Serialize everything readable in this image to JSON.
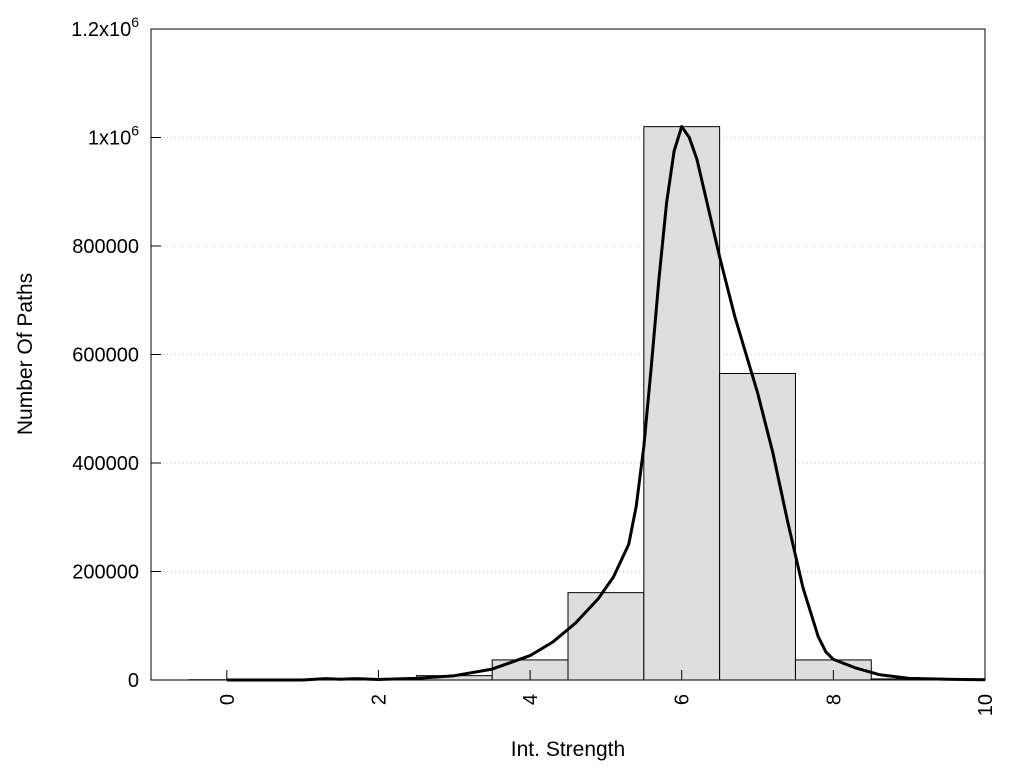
{
  "chart_data": {
    "type": "bar",
    "xlabel": "Int. Strength",
    "ylabel": "Number Of Paths",
    "xlim": [
      -1,
      10
    ],
    "ylim": [
      0,
      1200000
    ],
    "x_ticks": [
      {
        "value": 0,
        "label": "0"
      },
      {
        "value": 2,
        "label": "2"
      },
      {
        "value": 4,
        "label": "4"
      },
      {
        "value": 6,
        "label": "6"
      },
      {
        "value": 8,
        "label": "8"
      },
      {
        "value": 10,
        "label": "10"
      }
    ],
    "y_ticks": [
      {
        "value": 0,
        "label": "0",
        "sup": ""
      },
      {
        "value": 200000,
        "label": "200000",
        "sup": ""
      },
      {
        "value": 400000,
        "label": "400000",
        "sup": ""
      },
      {
        "value": 600000,
        "label": "600000",
        "sup": ""
      },
      {
        "value": 800000,
        "label": "800000",
        "sup": ""
      },
      {
        "value": 1000000,
        "label": "1x10",
        "sup": "6"
      },
      {
        "value": 1200000,
        "label": "1.2x10",
        "sup": "6"
      }
    ],
    "bar_width": 1,
    "bars": [
      {
        "x": 0,
        "value": 500
      },
      {
        "x": 1,
        "value": 1000
      },
      {
        "x": 2,
        "value": 2000
      },
      {
        "x": 3,
        "value": 8000
      },
      {
        "x": 4,
        "value": 37000
      },
      {
        "x": 5,
        "value": 161000
      },
      {
        "x": 6,
        "value": 1020000
      },
      {
        "x": 7,
        "value": 565000
      },
      {
        "x": 8,
        "value": 37000
      },
      {
        "x": 9,
        "value": 2000
      }
    ],
    "curve": [
      [
        0,
        0
      ],
      [
        0.5,
        0
      ],
      [
        1,
        0
      ],
      [
        1.3,
        2500
      ],
      [
        1.5,
        1500
      ],
      [
        1.7,
        2500
      ],
      [
        2,
        1000
      ],
      [
        2.5,
        3000
      ],
      [
        3,
        8000
      ],
      [
        3.5,
        20000
      ],
      [
        4,
        45000
      ],
      [
        4.3,
        70000
      ],
      [
        4.6,
        105000
      ],
      [
        4.9,
        150000
      ],
      [
        5.1,
        190000
      ],
      [
        5.3,
        250000
      ],
      [
        5.4,
        320000
      ],
      [
        5.5,
        430000
      ],
      [
        5.6,
        580000
      ],
      [
        5.7,
        740000
      ],
      [
        5.8,
        880000
      ],
      [
        5.9,
        975000
      ],
      [
        6,
        1020000
      ],
      [
        6.1,
        1000000
      ],
      [
        6.2,
        960000
      ],
      [
        6.3,
        900000
      ],
      [
        6.5,
        780000
      ],
      [
        6.7,
        670000
      ],
      [
        7,
        530000
      ],
      [
        7.2,
        420000
      ],
      [
        7.4,
        290000
      ],
      [
        7.6,
        170000
      ],
      [
        7.8,
        80000
      ],
      [
        7.9,
        52000
      ],
      [
        8,
        38000
      ],
      [
        8.3,
        22000
      ],
      [
        8.6,
        10000
      ],
      [
        9,
        3000
      ],
      [
        9.5,
        1500
      ],
      [
        10,
        500
      ]
    ]
  }
}
